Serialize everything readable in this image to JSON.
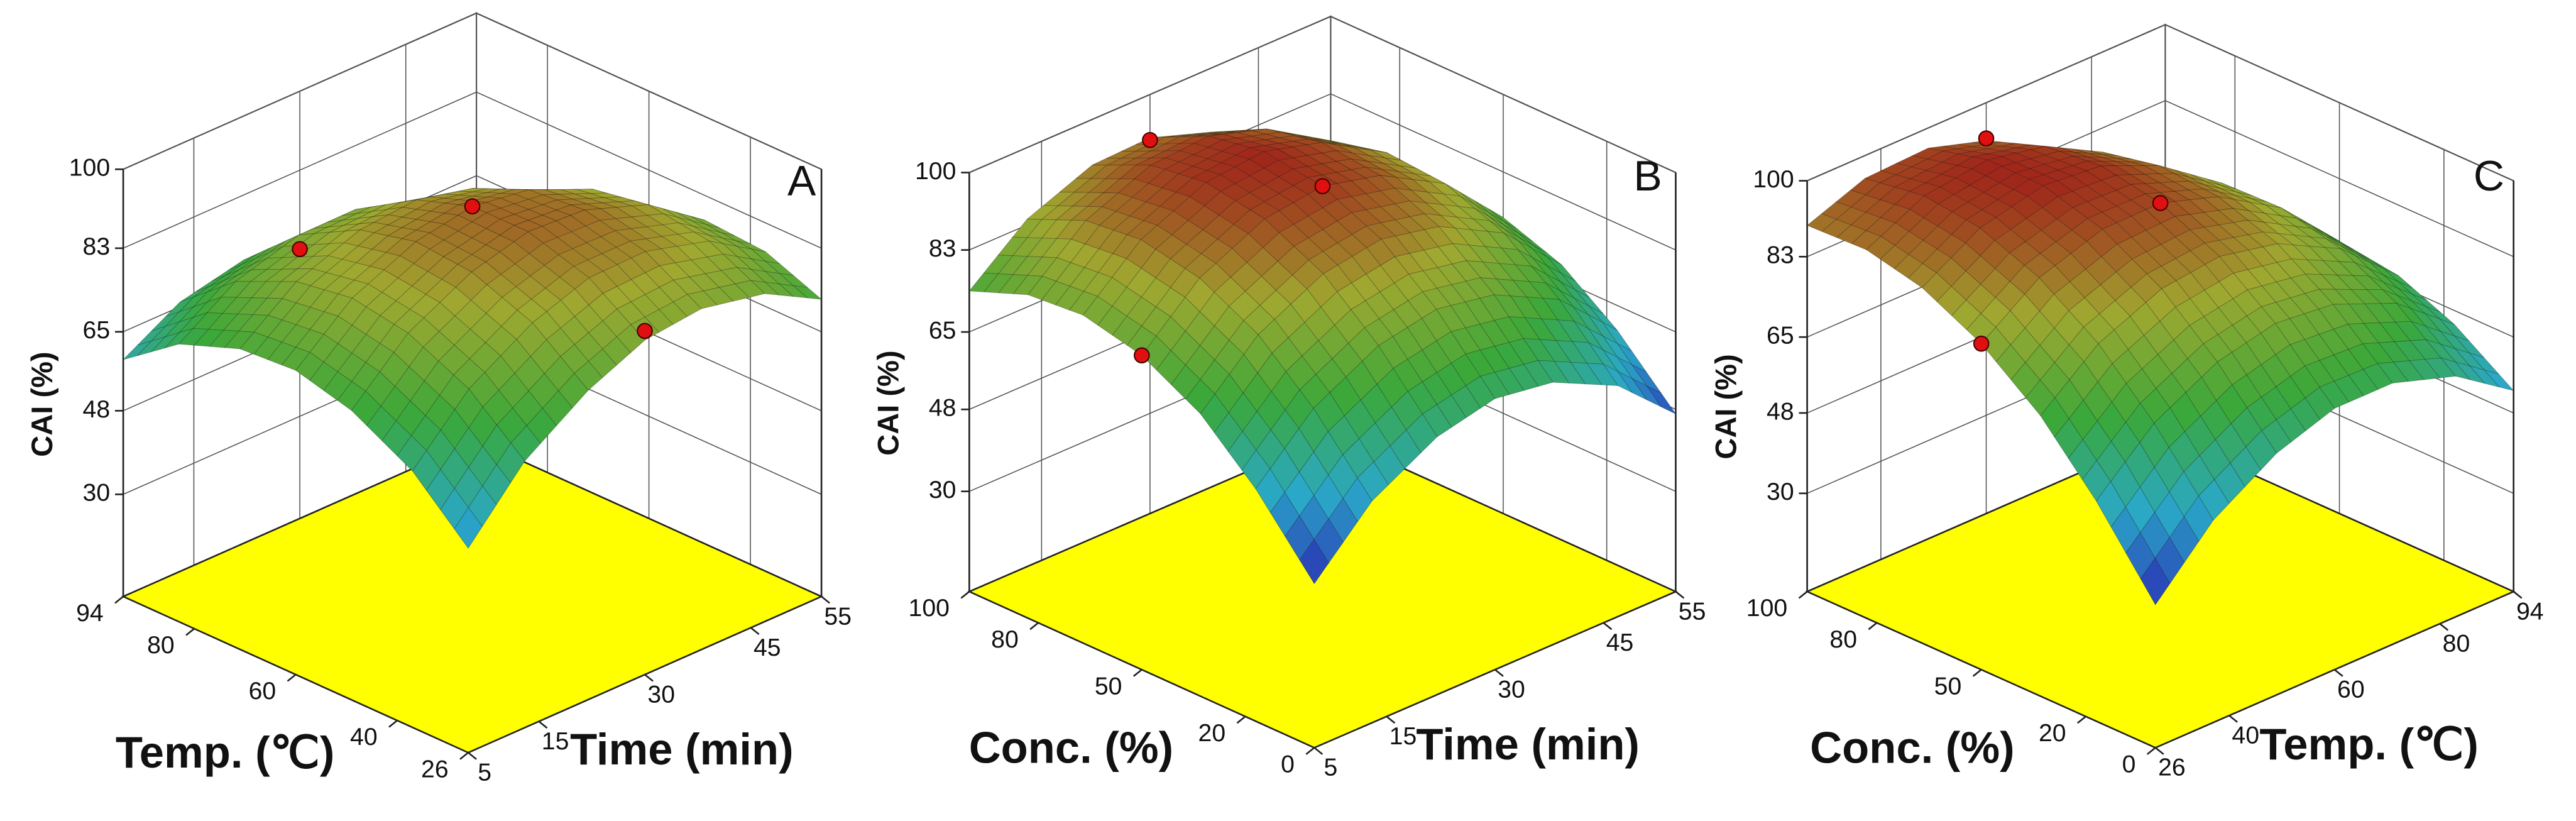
{
  "chart_data": [
    {
      "type": "surface3d",
      "label": "A",
      "x_label": "Time (min)",
      "y_label": "Temp. (℃)",
      "z_label": "CAI (%)",
      "xlim": [
        5,
        55
      ],
      "xticks": [
        5,
        15,
        30,
        45,
        55
      ],
      "ylim": [
        26,
        94
      ],
      "yticks": [
        26,
        40,
        60,
        80,
        94
      ],
      "zlim": [
        8,
        100
      ],
      "zticks": [
        30,
        48,
        65,
        83,
        100
      ],
      "grid": true,
      "floor_color": "#ffff00",
      "point_color": "#e01010",
      "colormap": [
        "#2a2ab4",
        "#2aa8c8",
        "#3aa83a",
        "#a0a830",
        "#a01818"
      ],
      "surface": {
        "x": [
          5,
          13,
          22,
          30,
          38,
          47,
          55
        ],
        "y": [
          26,
          37,
          49,
          60,
          71,
          83,
          94
        ],
        "z": [
          [
            52,
            65.4,
            74.6,
            80,
            81.4,
            78.6,
            72
          ],
          [
            63.2,
            75.5,
            83.7,
            88,
            88.3,
            84.5,
            76.8
          ],
          [
            70.3,
            81.6,
            88.7,
            92,
            91.3,
            86.4,
            77.7
          ],
          [
            73.5,
            83.7,
            89.8,
            92,
            90.2,
            84.3,
            74.5
          ],
          [
            72.7,
            81.8,
            86.9,
            88,
            85.1,
            78.2,
            67.3
          ],
          [
            67.8,
            75.9,
            79.9,
            80,
            76.1,
            68.1,
            56.2
          ],
          [
            59,
            66,
            69,
            68,
            63,
            54,
            41
          ]
        ]
      },
      "points": {
        "x": [
          30,
          30,
          30
        ],
        "y": [
          60,
          94,
          26
        ],
        "z": [
          92,
          66,
          82
        ]
      }
    },
    {
      "type": "surface3d",
      "label": "B",
      "x_label": "Time (min)",
      "y_label": "Conc. (%)",
      "z_label": "CAI (%)",
      "xlim": [
        5,
        55
      ],
      "xticks": [
        5,
        15,
        30,
        45,
        55
      ],
      "ylim": [
        0,
        100
      ],
      "yticks": [
        0,
        20,
        50,
        80,
        100
      ],
      "zlim": [
        8,
        100
      ],
      "zticks": [
        30,
        48,
        65,
        83,
        100
      ],
      "grid": true,
      "floor_color": "#ffff00",
      "point_color": "#e01010",
      "colormap": [
        "#2a2ab4",
        "#2aa8c8",
        "#3aa83a",
        "#a0a830",
        "#a01818"
      ],
      "surface": {
        "x": [
          5,
          13,
          22,
          30,
          38,
          47,
          55
        ],
        "y": [
          0,
          17,
          33,
          50,
          67,
          83,
          100
        ],
        "z": [
          [
            44,
            56.7,
            64.6,
            67.5,
            65.6,
            58.7,
            47
          ],
          [
            59,
            71.2,
            78.8,
            81.3,
            79,
            71.8,
            59.6
          ],
          [
            70,
            81.9,
            89.1,
            91.2,
            88.5,
            80.9,
            68.4
          ],
          [
            77,
            88.5,
            95.3,
            97,
            93.9,
            85.9,
            73
          ],
          [
            80,
            91.1,
            97.5,
            98.8,
            95.3,
            86.9,
            73.6
          ],
          [
            79,
            89.8,
            95.8,
            96.7,
            92.8,
            84,
            70.4
          ],
          [
            74,
            84.3,
            90,
            90.5,
            86.2,
            77.1,
            63
          ]
        ]
      },
      "points": {
        "x": [
          30,
          30,
          5
        ],
        "y": [
          50,
          100,
          50
        ],
        "z": [
          97,
          90,
          77
        ]
      }
    },
    {
      "type": "surface3d",
      "label": "C",
      "x_label": "Temp. (℃)",
      "y_label": "Conc. (%)",
      "z_label": "CAI (%)",
      "xlim": [
        26,
        94
      ],
      "xticks": [
        26,
        40,
        60,
        80,
        94
      ],
      "ylim": [
        0,
        100
      ],
      "yticks": [
        0,
        20,
        50,
        80,
        100
      ],
      "zlim": [
        8,
        100
      ],
      "zticks": [
        30,
        48,
        65,
        83,
        100
      ],
      "grid": true,
      "floor_color": "#ffff00",
      "point_color": "#e01010",
      "colormap": [
        "#2a2ab4",
        "#2aa8c8",
        "#3aa83a",
        "#a0a830",
        "#a01818"
      ],
      "surface": {
        "x": [
          26,
          37,
          49,
          60,
          71,
          83,
          94
        ],
        "y": [
          0,
          17,
          33,
          50,
          67,
          83,
          100
        ],
        "z": [
          [
            40,
            53.3,
            62.1,
            66.5,
            66.5,
            61.9,
            53
          ],
          [
            57.3,
            69.1,
            76.6,
            79.6,
            78.2,
            72.3,
            61.9
          ],
          [
            70.8,
            81.3,
            87.4,
            89,
            86.2,
            78.9,
            67.2
          ],
          [
            81,
            90.1,
            94.8,
            95,
            90.8,
            82.1,
            69
          ],
          [
            87.6,
            95.3,
            98.6,
            97.4,
            91.8,
            81.7,
            67.2
          ],
          [
            90.5,
            96.9,
            98.8,
            96.2,
            89.2,
            77.7,
            61.9
          ],
          [
            90,
            94.9,
            95.5,
            91.5,
            83.1,
            70.3,
            53
          ]
        ]
      },
      "points": {
        "x": [
          60,
          60,
          26
        ],
        "y": [
          50,
          100,
          50
        ],
        "z": [
          95,
          92,
          81
        ]
      }
    }
  ]
}
